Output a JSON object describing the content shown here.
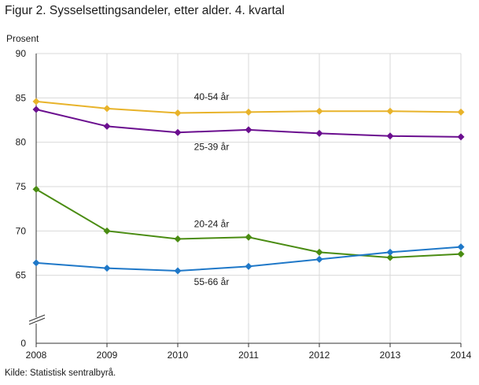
{
  "page": {
    "title": "Figur 2. Sysselsettingsandeler, etter alder. 4. kvartal",
    "source": "Kilde: Statistisk sentralbyrå."
  },
  "chart_data": {
    "type": "line",
    "title": "Figur 2. Sysselsettingsandeler, etter alder. 4. kvartal",
    "xlabel": "",
    "ylabel": "Prosent",
    "x": [
      "2008",
      "2009",
      "2010",
      "2011",
      "2012",
      "2013",
      "2014"
    ],
    "yticks": [
      0,
      65,
      70,
      75,
      80,
      85,
      90
    ],
    "ylim": [
      60,
      90
    ],
    "axis_break": true,
    "grid": true,
    "series": [
      {
        "name": "40-54 år",
        "color": "#e8b32a",
        "values": [
          84.6,
          83.8,
          83.3,
          83.4,
          83.5,
          83.5,
          83.4
        ]
      },
      {
        "name": "25-39 år",
        "color": "#6b0f8f",
        "values": [
          83.7,
          81.8,
          81.1,
          81.4,
          81.0,
          80.7,
          80.6
        ]
      },
      {
        "name": "20-24 år",
        "color": "#4a8c12",
        "values": [
          74.7,
          70.0,
          69.1,
          69.3,
          67.6,
          67.0,
          67.4
        ]
      },
      {
        "name": "55-66 år",
        "color": "#1f78c8",
        "values": [
          66.4,
          65.8,
          65.5,
          66.0,
          66.8,
          67.6,
          68.2
        ]
      }
    ]
  }
}
